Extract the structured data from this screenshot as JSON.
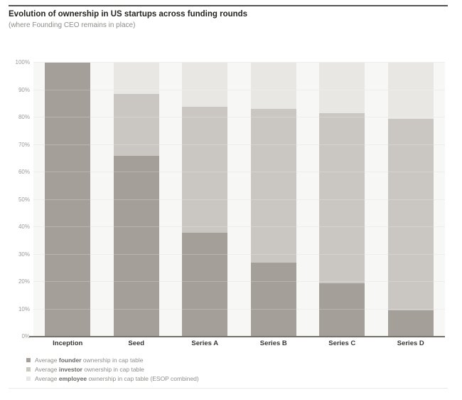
{
  "header": {
    "title": "Evolution of ownership in US startups across funding rounds",
    "subtitle": "(where Founding CEO remains in place)"
  },
  "chart_data": {
    "type": "bar",
    "stacked": true,
    "title": "Evolution of ownership in US startups across funding rounds",
    "subtitle": "(where Founding CEO remains in place)",
    "categories": [
      "Inception",
      "Seed",
      "Series A",
      "Series B",
      "Series C",
      "Series D"
    ],
    "series": [
      {
        "name": "founder",
        "color": "#a49f99",
        "values": [
          100,
          66,
          38,
          27,
          19.5,
          9.5
        ]
      },
      {
        "name": "investor",
        "color": "#cac6c2",
        "values": [
          0,
          22.5,
          46,
          56,
          62,
          70
        ]
      },
      {
        "name": "employee",
        "color": "#e9e7e4",
        "values": [
          0,
          11.5,
          16,
          17,
          18.5,
          20.5
        ]
      }
    ],
    "stack_totals": [
      100,
      100,
      100,
      100,
      100,
      100
    ],
    "founder_tops": [
      100,
      66,
      38,
      27,
      19.5,
      9.5
    ],
    "bar_tops_excluding_employee": [
      100,
      88.5,
      84,
      83,
      81.5,
      79.5
    ],
    "ylim": [
      0,
      100
    ],
    "y_tick_step": 10,
    "y_ticks": [
      "0%",
      "10%",
      "20%",
      "30%",
      "40%",
      "50%",
      "60%",
      "70%",
      "80%",
      "90%",
      "100%"
    ],
    "grid": true,
    "legend_position": "bottom-left"
  },
  "legend": {
    "items": [
      {
        "name": "founder",
        "pre": "Average ",
        "bold": "founder",
        "post": " ownership in cap table",
        "color": "#a49f99"
      },
      {
        "name": "investor",
        "pre": "Average ",
        "bold": "investor",
        "post": " ownership in cap table",
        "color": "#cac6c2"
      },
      {
        "name": "employee",
        "pre": "Average ",
        "bold": "employee",
        "post": " ownership in cap table (ESOP combined)",
        "color": "#e9e7e4"
      }
    ]
  },
  "colors": {
    "page_background": "#ffffff",
    "plot_background": "#f7f7f5",
    "gridline": "#eaeae8",
    "baseline": "#74716d",
    "top_rule": "#565450",
    "bottom_rule": "#e9e9e7",
    "title_text": "#262421",
    "subtitle_text": "#8f8d89",
    "y_tick_text": "#9c9a96",
    "x_tick_text": "#3a3835"
  }
}
